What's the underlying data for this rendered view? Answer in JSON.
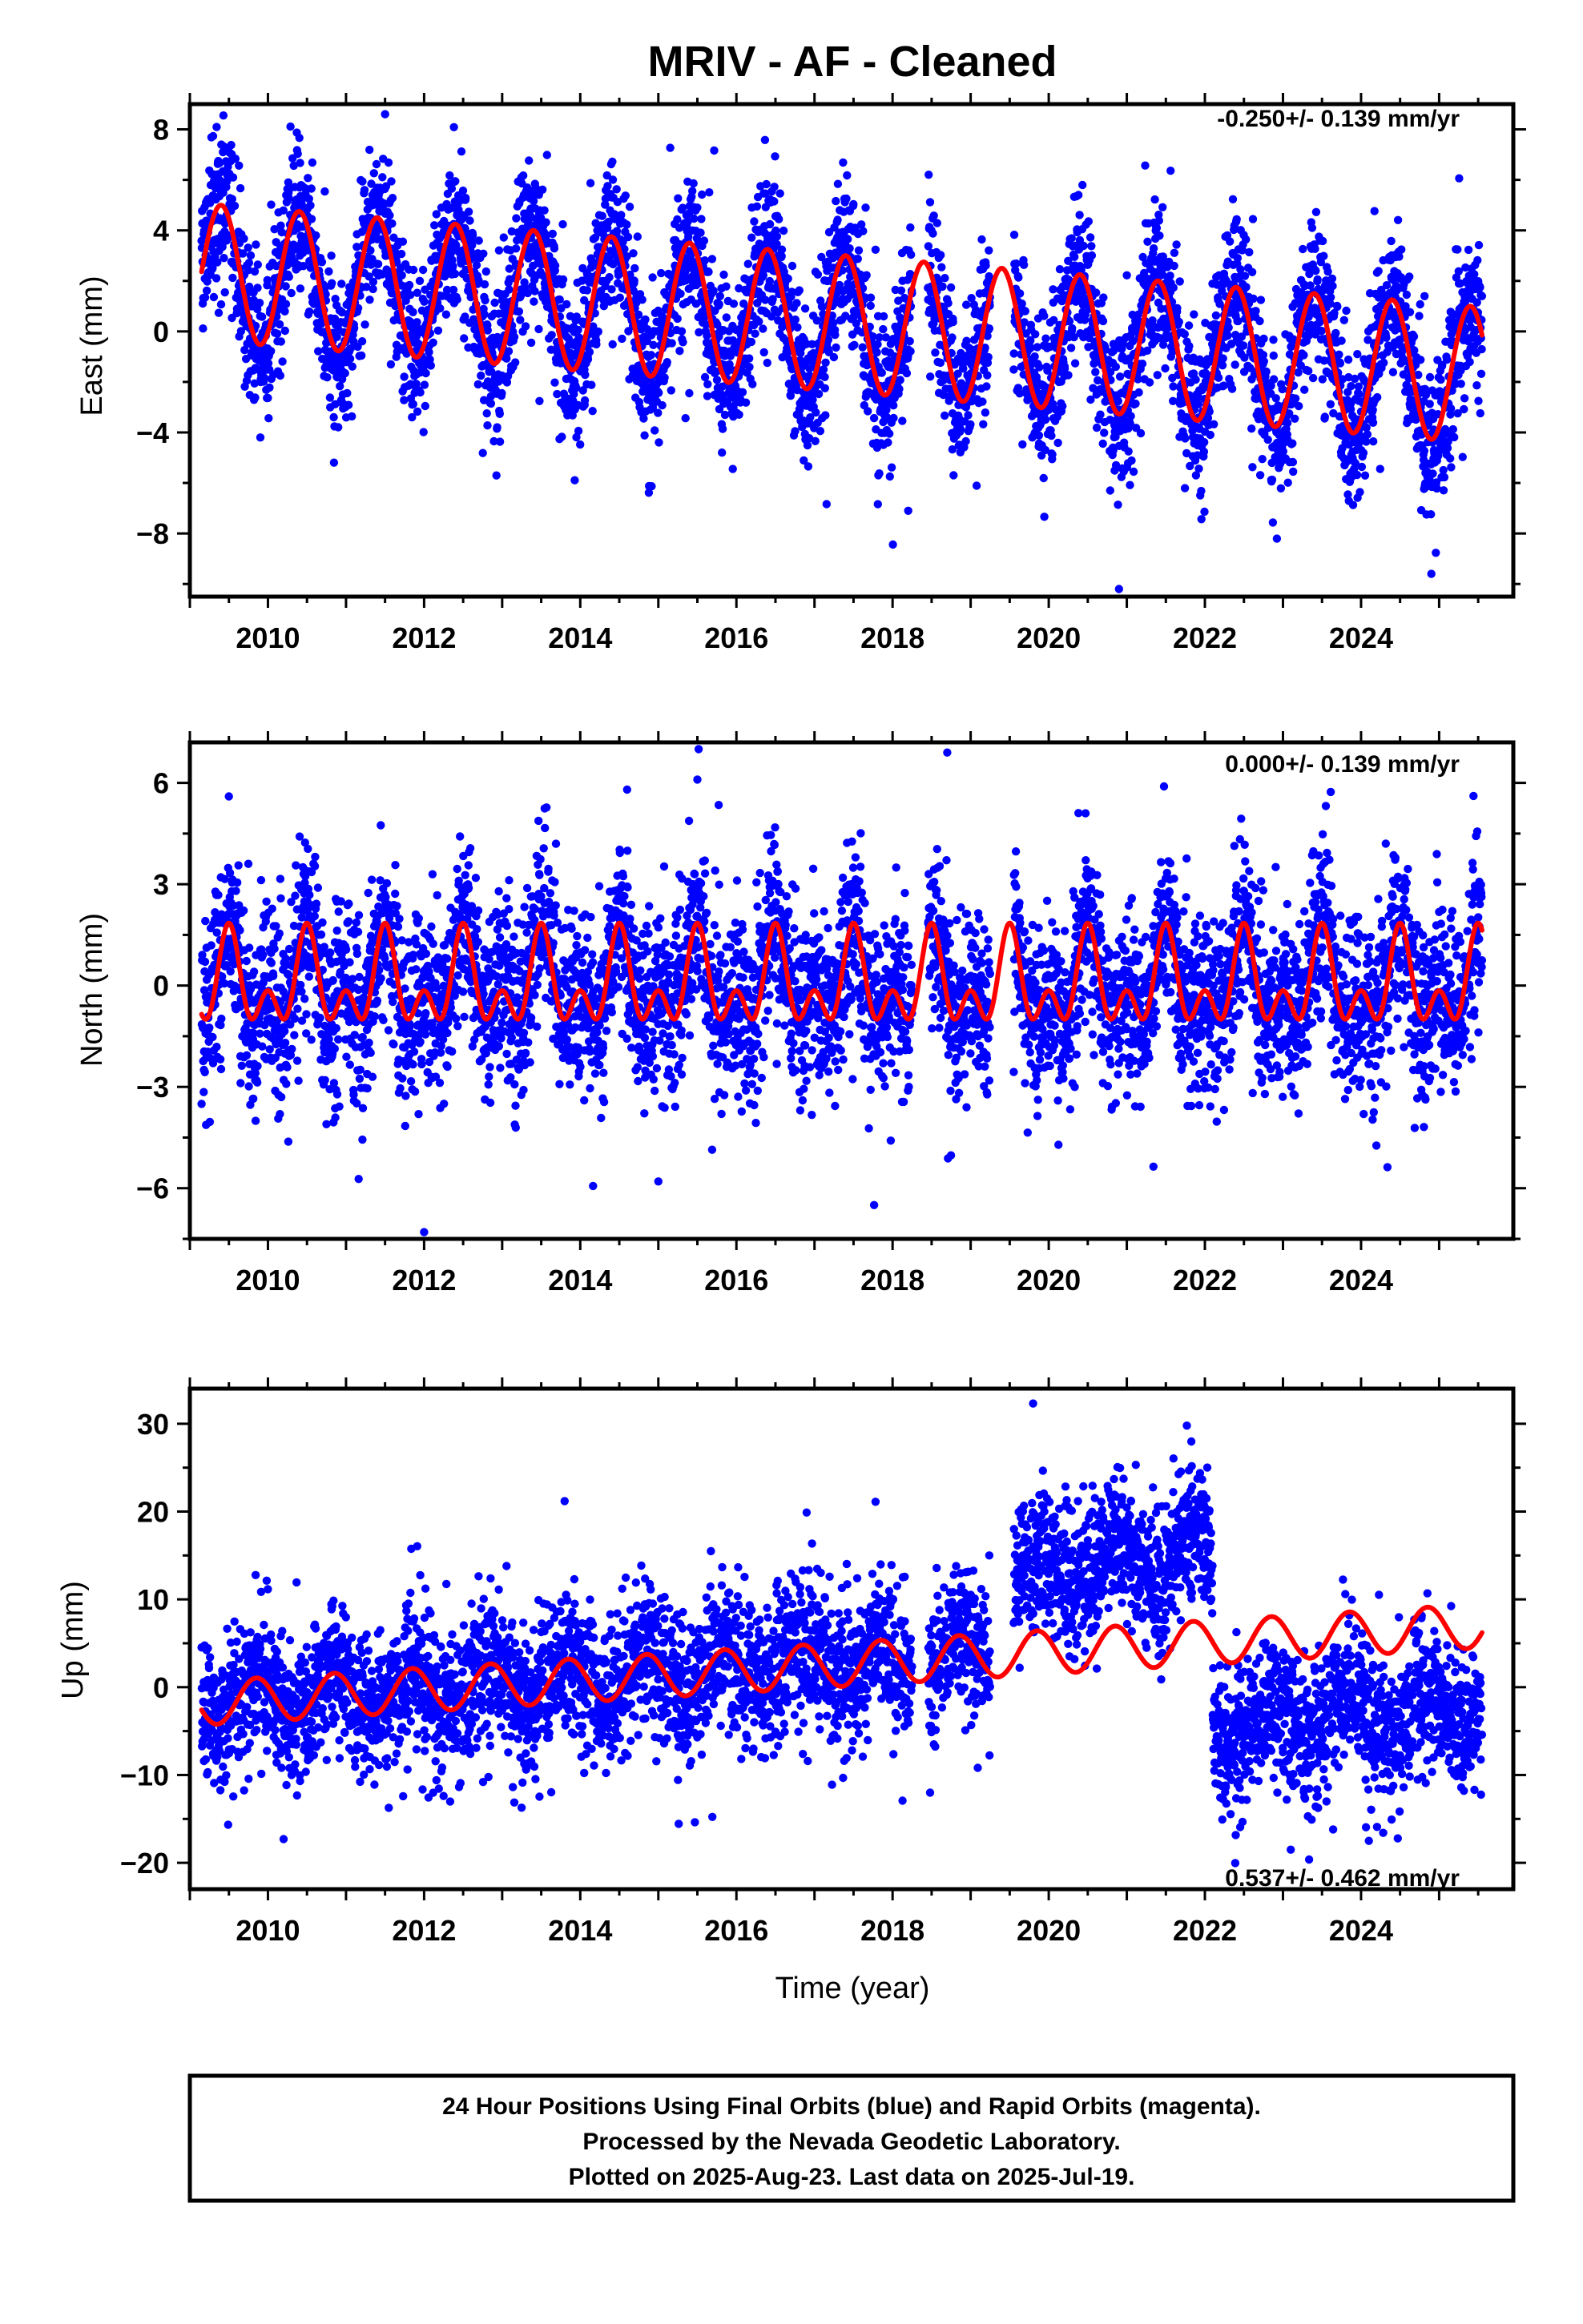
{
  "title": "MRIV  - AF - Cleaned",
  "x_axis_label": "Time (year)",
  "footer": [
    "24 Hour Positions Using Final Orbits (blue) and Rapid Orbits (magenta).",
    "Processed by the Nevada Geodetic Laboratory.",
    "Plotted on 2025-Aug-23. Last data on 2025-Jul-19."
  ],
  "colors": {
    "data": "#0000ff",
    "model": "#ff0000",
    "frame": "#000000"
  },
  "chart_data": [
    {
      "type": "scatter",
      "ylabel": "East (mm)",
      "rate": "-0.250+/- 0.139 mm/yr",
      "rate_position": "top-right",
      "xlim": [
        2009.0,
        2025.95
      ],
      "ylim": [
        -10.5,
        9.0
      ],
      "xticks": [
        "2010",
        "2012",
        "2014",
        "2016",
        "2018",
        "2020",
        "2022",
        "2024"
      ],
      "yticks": [
        "8",
        "4",
        "0",
        "−4",
        "−8"
      ],
      "ytick_values": [
        8,
        4,
        0,
        -4,
        -8
      ],
      "data_range": [
        2009.15,
        2025.55
      ],
      "model": {
        "type": "line",
        "name": "",
        "trend_mm_per_yr": -0.25,
        "offset_at_2009_mm": 2.4,
        "annual_amp_mm": 2.7,
        "annual_phase_year": 0.4,
        "semiannual_amp_mm": 0.0,
        "semiannual_phase_year": 0.0,
        "steps": []
      },
      "scatter": {
        "noise_mm": 1.5,
        "gaps": [
          [
            2018.25,
            2018.45
          ],
          [
            2019.25,
            2019.55
          ]
        ],
        "outliers": [
          [
            2011.5,
            8.6
          ],
          [
            2020.9,
            -10.2
          ],
          [
            2018.2,
            -7.1
          ],
          [
            2024.9,
            -9.6
          ]
        ]
      }
    },
    {
      "type": "scatter",
      "ylabel": "North (mm)",
      "rate": "0.000+/- 0.139 mm/yr",
      "rate_position": "top-right",
      "xlim": [
        2009.0,
        2025.95
      ],
      "ylim": [
        -7.5,
        7.2
      ],
      "xticks": [
        "2010",
        "2012",
        "2014",
        "2016",
        "2018",
        "2020",
        "2022",
        "2024"
      ],
      "yticks": [
        "6",
        "3",
        "0",
        "−3",
        "−6"
      ],
      "ytick_values": [
        6,
        3,
        0,
        -3,
        -6
      ],
      "data_range": [
        2009.15,
        2025.55
      ],
      "model": {
        "type": "line",
        "name": "",
        "trend_mm_per_yr": 0.0,
        "offset_at_2009_mm": 0.0,
        "annual_amp_mm": 1.0,
        "annual_phase_year": 0.5,
        "semiannual_amp_mm": 0.85,
        "semiannual_phase_year": 0.5,
        "steps": []
      },
      "scatter": {
        "noise_mm": 1.3,
        "gaps": [
          [
            2018.25,
            2018.45
          ],
          [
            2019.25,
            2019.55
          ]
        ],
        "outliers": [
          [
            2009.5,
            5.6
          ],
          [
            2014.6,
            5.8
          ],
          [
            2015.5,
            6.1
          ],
          [
            2018.7,
            6.9
          ],
          [
            2012.0,
            -7.3
          ],
          [
            2015.0,
            -5.8
          ]
        ]
      }
    },
    {
      "type": "scatter",
      "ylabel": "Up (mm)",
      "rate": "0.537+/- 0.462 mm/yr",
      "rate_position": "bottom-right",
      "xlim": [
        2009.0,
        2025.95
      ],
      "ylim": [
        -23,
        34
      ],
      "xticks": [
        "2010",
        "2012",
        "2014",
        "2016",
        "2018",
        "2020",
        "2022",
        "2024"
      ],
      "yticks": [
        "30",
        "20",
        "10",
        "0",
        "−10",
        "−20"
      ],
      "ytick_values": [
        30,
        20,
        10,
        0,
        -10,
        -20
      ],
      "data_range": [
        2009.15,
        2025.55
      ],
      "model": {
        "type": "line",
        "name": "",
        "trend_mm_per_yr": 0.537,
        "offset_at_2009_mm": -1.9,
        "annual_amp_mm": 2.5,
        "annual_phase_year": 0.85,
        "semiannual_amp_mm": 0.0,
        "semiannual_phase_year": 0.0,
        "steps": []
      },
      "scatter": {
        "noise_mm": 4.0,
        "gaps": [
          [
            2018.25,
            2018.45
          ],
          [
            2019.25,
            2019.55
          ]
        ],
        "segments": [
          {
            "from": 2009.15,
            "to": 2019.55,
            "level_offset_mm": 0
          },
          {
            "from": 2019.55,
            "to": 2022.1,
            "level_offset_mm": 9.5
          },
          {
            "from": 2022.1,
            "to": 2025.6,
            "level_offset_mm": -9.5
          }
        ],
        "outliers": [
          [
            2019.8,
            32.3
          ],
          [
            2013.8,
            21.2
          ],
          [
            2010.2,
            -17.3
          ],
          [
            2024.1,
            -17.5
          ],
          [
            2023.1,
            -18.5
          ]
        ]
      }
    }
  ]
}
